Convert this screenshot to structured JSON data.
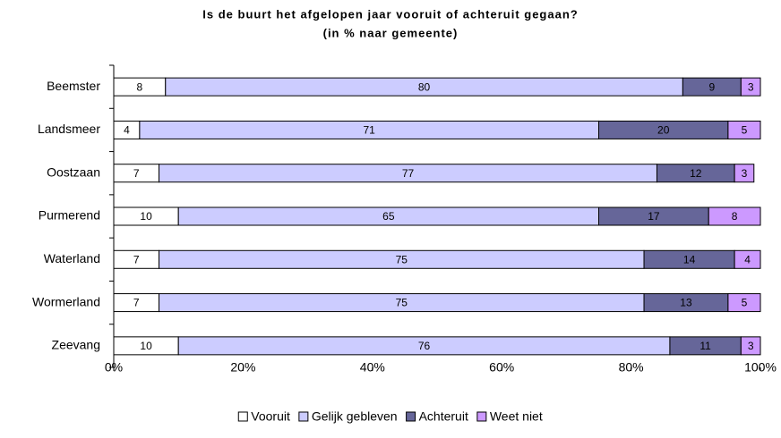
{
  "chart_data": {
    "type": "stacked-barh",
    "title": [
      "Is de buurt het afgelopen jaar vooruit of achteruit gegaan?",
      "(in % naar gemeente)"
    ],
    "categories": [
      "Beemster",
      "Landsmeer",
      "Oostzaan",
      "Purmerend",
      "Waterland",
      "Wormerland",
      "Zeevang"
    ],
    "series": [
      {
        "name": "Vooruit",
        "color": "#ffffff",
        "values": [
          8,
          4,
          7,
          10,
          7,
          7,
          10
        ]
      },
      {
        "name": "Gelijk gebleven",
        "color": "#ccccff",
        "values": [
          80,
          71,
          77,
          65,
          75,
          75,
          76
        ]
      },
      {
        "name": "Achteruit",
        "color": "#666699",
        "values": [
          9,
          20,
          12,
          17,
          14,
          13,
          11
        ]
      },
      {
        "name": "Weet niet",
        "color": "#cc99ff",
        "values": [
          3,
          5,
          3,
          8,
          4,
          5,
          3
        ]
      }
    ],
    "xlim": [
      0,
      100
    ],
    "xticks": [
      {
        "value": 0,
        "label": "0%"
      },
      {
        "value": 20,
        "label": "20%"
      },
      {
        "value": 40,
        "label": "40%"
      },
      {
        "value": 60,
        "label": "60%"
      },
      {
        "value": 80,
        "label": "80%"
      },
      {
        "value": 100,
        "label": "100%"
      }
    ],
    "legend": "bottom"
  }
}
